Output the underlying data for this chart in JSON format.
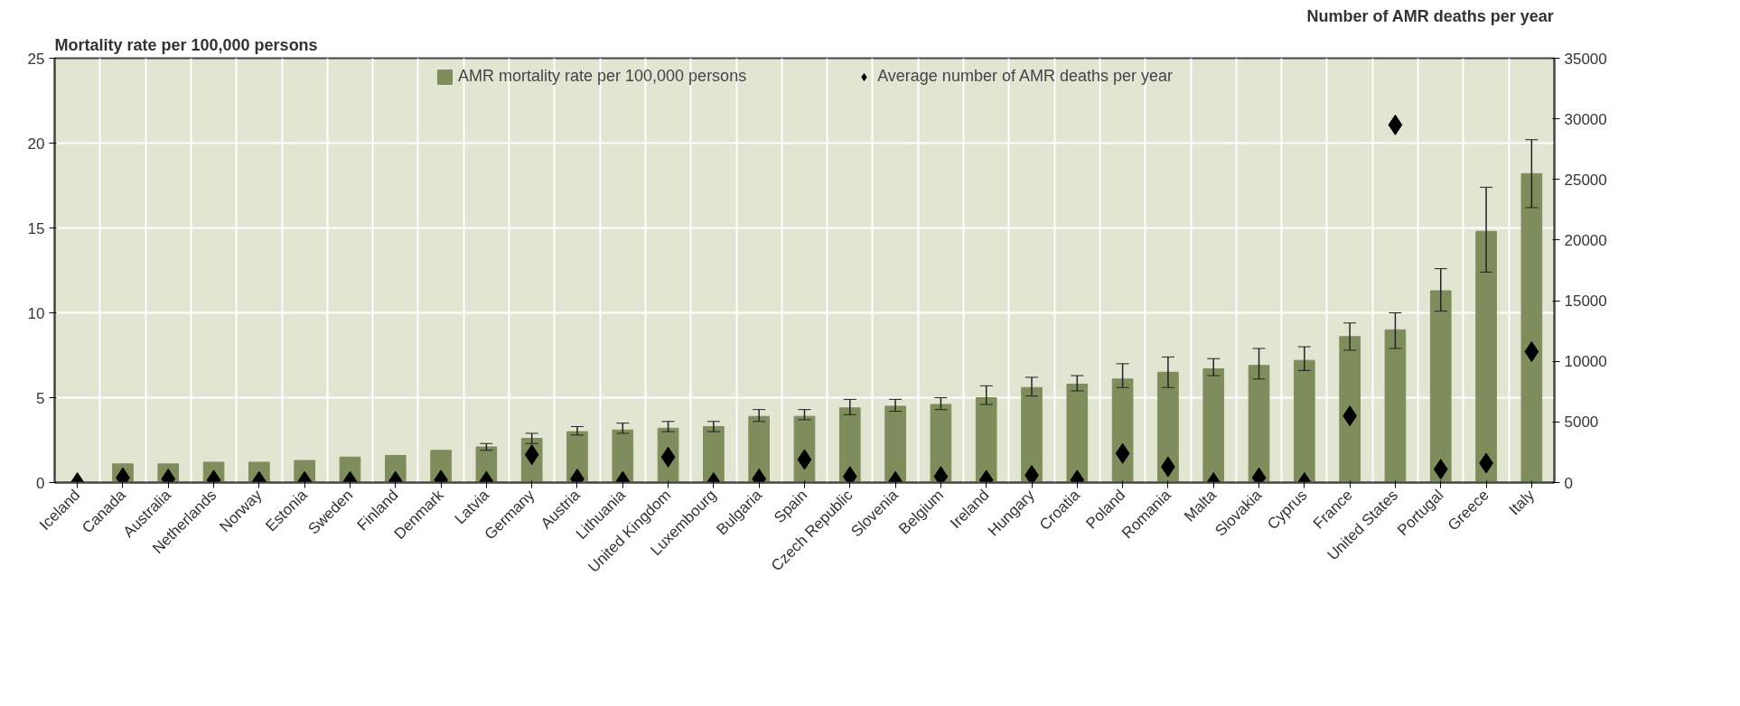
{
  "chart_data": {
    "xlabel": null,
    "ylabel": "Mortality rate per 100,000 persons",
    "y2label": "Number of AMR deaths per year",
    "categories": [
      "Iceland",
      "Canada",
      "Australia",
      "Netherlands",
      "Norway",
      "Estonia",
      "Sweden",
      "Finland",
      "Denmark",
      "Latvia",
      "Germany",
      "Austria",
      "Lithuania",
      "United Kingdom",
      "Luxembourg",
      "Bulgaria",
      "Spain",
      "Czech Republic",
      "Slovenia",
      "Belgium",
      "Ireland",
      "Hungary",
      "Croatia",
      "Poland",
      "Romania",
      "Malta",
      "Slovakia",
      "Cyprus",
      "France",
      "United States",
      "Portugal",
      "Greece",
      "Italy"
    ],
    "series": [
      {
        "name": "AMR mortality rate per 100,000 persons",
        "type": "bar",
        "color": "#7f8c5c",
        "values": [
          0,
          1.1,
          1.1,
          1.2,
          1.2,
          1.3,
          1.5,
          1.6,
          1.9,
          2.1,
          2.6,
          3.0,
          3.1,
          3.2,
          3.3,
          3.9,
          3.9,
          4.4,
          4.5,
          4.6,
          5.0,
          5.6,
          5.8,
          6.1,
          6.5,
          6.7,
          6.9,
          7.2,
          8.6,
          9.0,
          11.3,
          14.8,
          18.2
        ],
        "errors": [
          null,
          null,
          null,
          null,
          null,
          null,
          null,
          null,
          null,
          [
            1.9,
            2.3
          ],
          [
            2.3,
            2.9
          ],
          [
            2.8,
            3.3
          ],
          [
            2.9,
            3.5
          ],
          [
            3.0,
            3.6
          ],
          [
            3.0,
            3.6
          ],
          [
            3.6,
            4.3
          ],
          [
            3.7,
            4.3
          ],
          [
            4.0,
            4.9
          ],
          [
            4.2,
            4.9
          ],
          [
            4.3,
            5.0
          ],
          [
            4.6,
            5.7
          ],
          [
            5.1,
            6.2
          ],
          [
            5.4,
            6.3
          ],
          [
            5.6,
            7.0
          ],
          [
            5.6,
            7.4
          ],
          [
            6.3,
            7.3
          ],
          [
            6.1,
            7.9
          ],
          [
            6.6,
            8.0
          ],
          [
            7.8,
            9.4
          ],
          [
            7.9,
            10.0
          ],
          [
            10.1,
            12.6
          ],
          [
            12.4,
            17.4
          ],
          [
            16.2,
            20.2
          ]
        ]
      },
      {
        "name": "Average number of AMR deaths per year",
        "type": "scatter",
        "axis": "y2",
        "color": "#000000",
        "marker": "diamond",
        "values": [
          0,
          400,
          300,
          200,
          100,
          100,
          100,
          100,
          200,
          100,
          2300,
          300,
          100,
          2100,
          0,
          300,
          1900,
          500,
          100,
          500,
          200,
          600,
          200,
          2400,
          1300,
          0,
          400,
          0,
          5500,
          29500,
          1100,
          1600,
          10800
        ]
      }
    ],
    "ylim": [
      0,
      25
    ],
    "yticks": [
      0,
      5,
      10,
      15,
      20,
      25
    ],
    "y2lim": [
      0,
      35000
    ],
    "y2ticks": [
      0,
      5000,
      10000,
      15000,
      20000,
      25000,
      30000,
      35000
    ],
    "type": "bar",
    "grid": true,
    "legend": "top"
  }
}
